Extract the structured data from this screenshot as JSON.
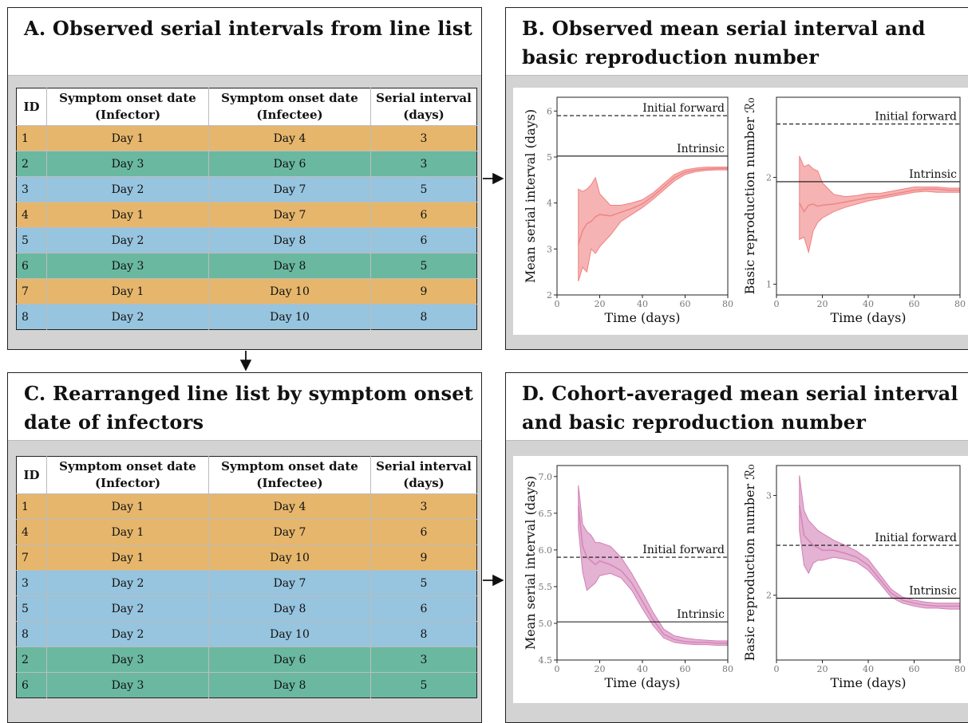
{
  "colors": {
    "orange": "#e6b66c",
    "green": "#6ab8a0",
    "blue": "#97c4de",
    "red": "#f08080",
    "pink": "#d27fb5"
  },
  "panel_a": {
    "title": "A. Observed serial intervals from line list",
    "headers": [
      {
        "l1": "ID",
        "l2": ""
      },
      {
        "l1": "Symptom onset date",
        "l2": "(Infector)"
      },
      {
        "l1": "Symptom onset date",
        "l2": "(Infectee)"
      },
      {
        "l1": "Serial interval",
        "l2": "(days)"
      }
    ],
    "rows": [
      {
        "id": "1",
        "infector": "Day 1",
        "infectee": "Day 4",
        "si": "3",
        "color": "orange"
      },
      {
        "id": "2",
        "infector": "Day 3",
        "infectee": "Day 6",
        "si": "3",
        "color": "green"
      },
      {
        "id": "3",
        "infector": "Day 2",
        "infectee": "Day 7",
        "si": "5",
        "color": "blue"
      },
      {
        "id": "4",
        "infector": "Day 1",
        "infectee": "Day 7",
        "si": "6",
        "color": "orange"
      },
      {
        "id": "5",
        "infector": "Day 2",
        "infectee": "Day 8",
        "si": "6",
        "color": "blue"
      },
      {
        "id": "6",
        "infector": "Day 3",
        "infectee": "Day 8",
        "si": "5",
        "color": "green"
      },
      {
        "id": "7",
        "infector": "Day 1",
        "infectee": "Day 10",
        "si": "9",
        "color": "orange"
      },
      {
        "id": "8",
        "infector": "Day 2",
        "infectee": "Day 10",
        "si": "8",
        "color": "blue"
      }
    ]
  },
  "panel_b": {
    "title_l1": "B. Observed mean serial interval and",
    "title_l2": "basic reproduction number"
  },
  "panel_c": {
    "title_l1": "C. Rearranged line list by symptom onset",
    "title_l2": "date of infectors",
    "rows": [
      {
        "id": "1",
        "infector": "Day 1",
        "infectee": "Day 4",
        "si": "3",
        "color": "orange"
      },
      {
        "id": "4",
        "infector": "Day 1",
        "infectee": "Day 7",
        "si": "6",
        "color": "orange"
      },
      {
        "id": "7",
        "infector": "Day 1",
        "infectee": "Day 10",
        "si": "9",
        "color": "orange"
      },
      {
        "id": "3",
        "infector": "Day 2",
        "infectee": "Day 7",
        "si": "5",
        "color": "blue"
      },
      {
        "id": "5",
        "infector": "Day 2",
        "infectee": "Day 8",
        "si": "6",
        "color": "blue"
      },
      {
        "id": "8",
        "infector": "Day 2",
        "infectee": "Day 10",
        "si": "8",
        "color": "blue"
      },
      {
        "id": "2",
        "infector": "Day 3",
        "infectee": "Day 6",
        "si": "3",
        "color": "green"
      },
      {
        "id": "6",
        "infector": "Day 3",
        "infectee": "Day 8",
        "si": "5",
        "color": "green"
      }
    ]
  },
  "panel_d": {
    "title_l1": "D. Cohort-averaged mean serial interval",
    "title_l2": "and basic reproduction number"
  },
  "chart_data": [
    {
      "id": "B-left",
      "type": "line",
      "color": "red",
      "xlabel": "Time (days)",
      "ylabel": "Mean serial interval (days)",
      "xlim": [
        0,
        80
      ],
      "ylim": [
        2,
        6.3
      ],
      "xticks": [
        0,
        20,
        40,
        60,
        80
      ],
      "yticks": [
        2,
        3,
        4,
        5,
        6
      ],
      "reference_lines": [
        {
          "label": "Initial forward",
          "y": 5.9,
          "style": "dashed"
        },
        {
          "label": "Intrinsic",
          "y": 5.02,
          "style": "solid"
        }
      ],
      "x": [
        10,
        12,
        14,
        16,
        18,
        20,
        25,
        30,
        35,
        40,
        45,
        50,
        55,
        60,
        65,
        70,
        75,
        80
      ],
      "mean": [
        3.1,
        3.4,
        3.55,
        3.6,
        3.7,
        3.75,
        3.72,
        3.8,
        3.88,
        3.98,
        4.15,
        4.35,
        4.55,
        4.67,
        4.72,
        4.74,
        4.75,
        4.75
      ],
      "lower": [
        2.3,
        2.6,
        2.5,
        3.0,
        2.9,
        3.05,
        3.3,
        3.6,
        3.75,
        3.9,
        4.08,
        4.28,
        4.48,
        4.62,
        4.68,
        4.71,
        4.72,
        4.72
      ],
      "upper": [
        4.3,
        4.25,
        4.3,
        4.4,
        4.55,
        4.2,
        3.95,
        3.95,
        4.0,
        4.07,
        4.22,
        4.42,
        4.62,
        4.72,
        4.76,
        4.78,
        4.78,
        4.78
      ]
    },
    {
      "id": "B-right",
      "type": "line",
      "color": "red",
      "xlabel": "Time (days)",
      "ylabel": "Basic reproduction number ℛ₀",
      "xlim": [
        0,
        80
      ],
      "ylim": [
        0.9,
        2.75
      ],
      "xticks": [
        0,
        20,
        40,
        60,
        80
      ],
      "yticks": [
        1,
        2
      ],
      "reference_lines": [
        {
          "label": "Initial forward",
          "y": 2.5,
          "style": "dashed"
        },
        {
          "label": "Intrinsic",
          "y": 1.96,
          "style": "solid"
        }
      ],
      "x": [
        10,
        12,
        14,
        16,
        18,
        20,
        25,
        30,
        35,
        40,
        45,
        50,
        55,
        60,
        65,
        70,
        75,
        80
      ],
      "mean": [
        1.76,
        1.68,
        1.74,
        1.75,
        1.73,
        1.74,
        1.75,
        1.77,
        1.79,
        1.81,
        1.82,
        1.84,
        1.86,
        1.88,
        1.89,
        1.89,
        1.88,
        1.88
      ],
      "lower": [
        1.42,
        1.44,
        1.3,
        1.5,
        1.58,
        1.62,
        1.68,
        1.72,
        1.75,
        1.78,
        1.8,
        1.82,
        1.84,
        1.86,
        1.87,
        1.86,
        1.86,
        1.86
      ],
      "upper": [
        2.2,
        2.1,
        2.12,
        2.08,
        2.06,
        1.95,
        1.84,
        1.82,
        1.83,
        1.85,
        1.85,
        1.87,
        1.89,
        1.91,
        1.91,
        1.91,
        1.9,
        1.9
      ]
    },
    {
      "id": "D-left",
      "type": "line",
      "color": "pink",
      "xlabel": "Time (days)",
      "ylabel": "Mean serial interval (days)",
      "xlim": [
        0,
        80
      ],
      "ylim": [
        4.5,
        7.15
      ],
      "xticks": [
        0,
        20,
        40,
        60,
        80
      ],
      "yticks": [
        4.5,
        5.0,
        5.5,
        6.0,
        6.5,
        7.0
      ],
      "reference_lines": [
        {
          "label": "Initial forward",
          "y": 5.9,
          "style": "dashed"
        },
        {
          "label": "Intrinsic",
          "y": 5.02,
          "style": "solid"
        }
      ],
      "x": [
        10,
        12,
        14,
        16,
        18,
        20,
        25,
        30,
        35,
        40,
        45,
        50,
        55,
        60,
        65,
        70,
        75,
        80
      ],
      "mean": [
        6.6,
        6.05,
        5.9,
        5.85,
        5.8,
        5.85,
        5.8,
        5.72,
        5.55,
        5.3,
        5.05,
        4.85,
        4.78,
        4.75,
        4.74,
        4.74,
        4.73,
        4.73
      ],
      "lower": [
        6.3,
        5.7,
        5.45,
        5.5,
        5.55,
        5.65,
        5.68,
        5.62,
        5.45,
        5.2,
        4.97,
        4.8,
        4.74,
        4.72,
        4.71,
        4.71,
        4.7,
        4.7
      ],
      "upper": [
        6.88,
        6.35,
        6.25,
        6.2,
        6.1,
        6.1,
        6.05,
        5.9,
        5.68,
        5.42,
        5.15,
        4.92,
        4.83,
        4.8,
        4.78,
        4.77,
        4.76,
        4.76
      ]
    },
    {
      "id": "D-right",
      "type": "line",
      "color": "pink",
      "xlabel": "Time (days)",
      "ylabel": "Basic reproduction number ℛ₀",
      "xlim": [
        0,
        80
      ],
      "ylim": [
        1.35,
        3.3
      ],
      "xticks": [
        0,
        20,
        40,
        60,
        80
      ],
      "yticks": [
        2,
        3
      ],
      "reference_lines": [
        {
          "label": "Initial forward",
          "y": 2.5,
          "style": "dashed"
        },
        {
          "label": "Intrinsic",
          "y": 1.97,
          "style": "solid"
        }
      ],
      "x": [
        10,
        12,
        14,
        16,
        18,
        20,
        25,
        30,
        35,
        40,
        45,
        50,
        55,
        60,
        65,
        70,
        75,
        80
      ],
      "mean": [
        2.9,
        2.6,
        2.55,
        2.5,
        2.48,
        2.45,
        2.45,
        2.42,
        2.38,
        2.3,
        2.16,
        2.02,
        1.95,
        1.92,
        1.9,
        1.89,
        1.89,
        1.89
      ],
      "lower": [
        2.65,
        2.3,
        2.22,
        2.32,
        2.35,
        2.35,
        2.38,
        2.36,
        2.33,
        2.25,
        2.12,
        1.98,
        1.92,
        1.89,
        1.87,
        1.87,
        1.86,
        1.86
      ],
      "upper": [
        3.2,
        2.85,
        2.75,
        2.7,
        2.65,
        2.62,
        2.55,
        2.5,
        2.44,
        2.36,
        2.21,
        2.06,
        1.98,
        1.95,
        1.93,
        1.92,
        1.92,
        1.92
      ]
    }
  ]
}
